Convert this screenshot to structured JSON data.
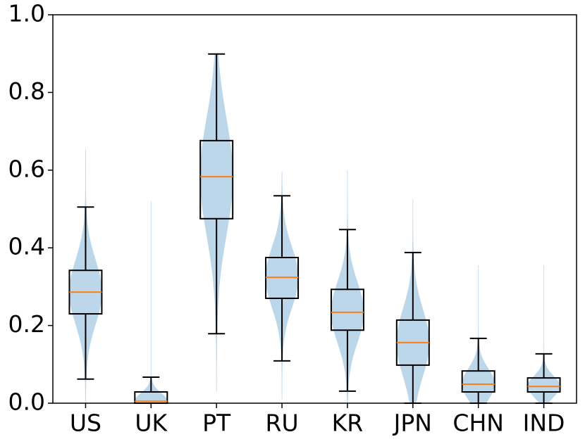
{
  "chart_data": {
    "type": "box-violin",
    "categories": [
      "US",
      "UK",
      "PT",
      "RU",
      "KR",
      "JPN",
      "CHN",
      "IND"
    ],
    "boxes": [
      {
        "whislo": 0.062,
        "q1": 0.23,
        "med": 0.286,
        "q3": 0.342,
        "whishi": 0.505,
        "violin_range": [
          0.0,
          0.655
        ]
      },
      {
        "whislo": 0.0,
        "q1": 0.0,
        "med": 0.005,
        "q3": 0.029,
        "whishi": 0.067,
        "violin_range": [
          0.0,
          0.52
        ]
      },
      {
        "whislo": 0.179,
        "q1": 0.475,
        "med": 0.583,
        "q3": 0.676,
        "whishi": 0.899,
        "violin_range": [
          0.03,
          0.9
        ]
      },
      {
        "whislo": 0.109,
        "q1": 0.27,
        "med": 0.324,
        "q3": 0.375,
        "whishi": 0.534,
        "violin_range": [
          0.01,
          0.595
        ]
      },
      {
        "whislo": 0.031,
        "q1": 0.188,
        "med": 0.234,
        "q3": 0.293,
        "whishi": 0.447,
        "violin_range": [
          0.0,
          0.6
        ]
      },
      {
        "whislo": 0.0,
        "q1": 0.098,
        "med": 0.156,
        "q3": 0.214,
        "whishi": 0.388,
        "violin_range": [
          0.0,
          0.525
        ]
      },
      {
        "whislo": 0.0,
        "q1": 0.029,
        "med": 0.049,
        "q3": 0.083,
        "whishi": 0.167,
        "violin_range": [
          0.0,
          0.355
        ]
      },
      {
        "whislo": 0.0,
        "q1": 0.029,
        "med": 0.043,
        "q3": 0.065,
        "whishi": 0.127,
        "violin_range": [
          0.0,
          0.355
        ]
      }
    ],
    "box_color": "#000000",
    "median_color": "#ff7f0e",
    "violin_color": "#bcd6ea",
    "ylim": [
      0,
      1
    ],
    "yticks": [
      {
        "value": 0,
        "label": "0.0"
      },
      0.2,
      0.4,
      0.6,
      0.8,
      {
        "value": 1,
        "label": "1.0"
      }
    ]
  }
}
